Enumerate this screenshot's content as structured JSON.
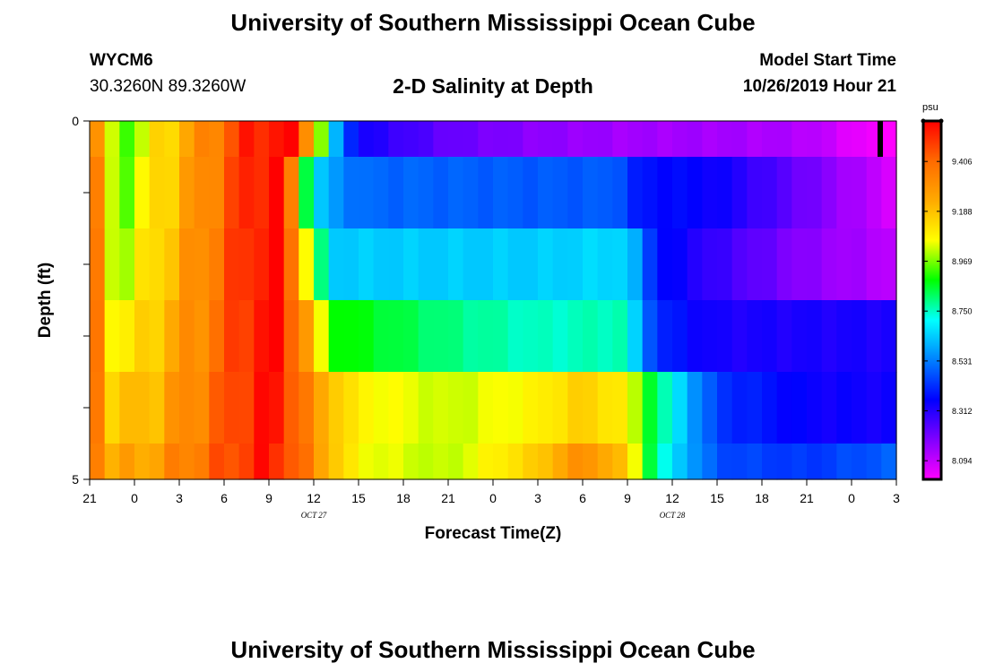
{
  "header": {
    "title": "University of Southern Mississippi Ocean Cube",
    "station": "WYCM6",
    "coords": "30.3260N 89.3260W",
    "subtitle": "2-D Salinity at Depth",
    "model_label": "Model Start Time",
    "model_time": "10/26/2019 Hour 21"
  },
  "footer": {
    "title": "University of Southern Mississippi Ocean Cube"
  },
  "chart_data": {
    "type": "heatmap",
    "xlabel": "Forecast Time(Z)",
    "ylabel": "Depth (ft)",
    "x_tick_labels": [
      "21",
      "0",
      "3",
      "6",
      "9",
      "12",
      "15",
      "18",
      "21",
      "0",
      "3",
      "6",
      "9",
      "12",
      "15",
      "18",
      "21",
      "0",
      "3"
    ],
    "date_labels": [
      {
        "text": "OCT 27",
        "tick_index": 5
      },
      {
        "text": "OCT 28",
        "tick_index": 13
      }
    ],
    "y_tick_labels": [
      {
        "text": "0",
        "value": 0
      },
      {
        "text": "5",
        "value": 5
      }
    ],
    "ylim": [
      0,
      5
    ],
    "forecast_hours": 54,
    "depth_layers": 5,
    "colorbar": {
      "units": "psu",
      "tick_labels": [
        "9.406",
        "9.188",
        "8.969",
        "8.750",
        "8.531",
        "8.312",
        "8.094"
      ],
      "colors_top_to_bottom": [
        "#ff0000",
        "#ff6a00",
        "#ffaa00",
        "#ffff00",
        "#00ff00",
        "#00ffff",
        "#0080ff",
        "#0000ff",
        "#8000ff",
        "#ff00ff"
      ]
    },
    "value_range": [
      8.0,
      9.5
    ],
    "layer_profiles": [
      [
        [
          0,
          9.38
        ],
        [
          1.5,
          8.93
        ],
        [
          3,
          8.9
        ],
        [
          4,
          9.02
        ],
        [
          6,
          9.14
        ],
        [
          9,
          9.33
        ],
        [
          11,
          9.47
        ],
        [
          14,
          9.46
        ],
        [
          15,
          9.1
        ],
        [
          16.5,
          8.56
        ],
        [
          18,
          8.31
        ],
        [
          24,
          8.2
        ],
        [
          30,
          8.15
        ],
        [
          36,
          8.12
        ],
        [
          42,
          8.12
        ],
        [
          48,
          8.1
        ],
        [
          50,
          8.06
        ],
        [
          54,
          7.98
        ]
      ],
      [
        [
          0,
          9.4
        ],
        [
          1.5,
          8.95
        ],
        [
          3,
          8.92
        ],
        [
          4,
          9.04
        ],
        [
          6,
          9.15
        ],
        [
          9,
          9.33
        ],
        [
          11,
          9.47
        ],
        [
          13,
          9.48
        ],
        [
          15,
          8.62
        ],
        [
          16,
          8.55
        ],
        [
          18,
          8.47
        ],
        [
          30,
          8.45
        ],
        [
          36,
          8.45
        ],
        [
          36.5,
          8.36
        ],
        [
          42,
          8.32
        ],
        [
          54,
          8.05
        ]
      ],
      [
        [
          0,
          9.38
        ],
        [
          1.5,
          8.98
        ],
        [
          3,
          8.96
        ],
        [
          4,
          9.06
        ],
        [
          6,
          9.17
        ],
        [
          9,
          9.34
        ],
        [
          11,
          9.47
        ],
        [
          13,
          9.48
        ],
        [
          15,
          8.88
        ],
        [
          16,
          8.6
        ],
        [
          24,
          8.6
        ],
        [
          30,
          8.6
        ],
        [
          36,
          8.62
        ],
        [
          36.5,
          8.55
        ],
        [
          38,
          8.35
        ],
        [
          42,
          8.26
        ],
        [
          48,
          8.15
        ],
        [
          54,
          8.09
        ]
      ],
      [
        [
          0,
          9.37
        ],
        [
          1.5,
          9.05
        ],
        [
          3,
          9.02
        ],
        [
          4,
          9.1
        ],
        [
          6,
          9.19
        ],
        [
          9,
          9.34
        ],
        [
          11,
          9.47
        ],
        [
          13,
          9.47
        ],
        [
          15,
          9.12
        ],
        [
          16,
          8.85
        ],
        [
          24,
          8.75
        ],
        [
          30,
          8.7
        ],
        [
          36,
          8.72
        ],
        [
          36.5,
          8.6
        ],
        [
          38,
          8.38
        ],
        [
          42,
          8.3
        ],
        [
          48,
          8.3
        ],
        [
          54,
          8.3
        ]
      ],
      [
        [
          0,
          9.36
        ],
        [
          1.5,
          9.12
        ],
        [
          3,
          9.1
        ],
        [
          4,
          9.14
        ],
        [
          6,
          9.22
        ],
        [
          9,
          9.35
        ],
        [
          11,
          9.46
        ],
        [
          13,
          9.46
        ],
        [
          15,
          9.2
        ],
        [
          18,
          9.02
        ],
        [
          24,
          8.96
        ],
        [
          30,
          9.02
        ],
        [
          33,
          9.1
        ],
        [
          36,
          9.02
        ],
        [
          38,
          8.75
        ],
        [
          42,
          8.4
        ],
        [
          48,
          8.32
        ],
        [
          54,
          8.31
        ]
      ],
      [
        [
          0,
          9.35
        ],
        [
          1.5,
          9.18
        ],
        [
          3,
          9.16
        ],
        [
          4,
          9.19
        ],
        [
          6,
          9.26
        ],
        [
          9,
          9.36
        ],
        [
          11,
          9.45
        ],
        [
          13,
          9.44
        ],
        [
          15,
          9.22
        ],
        [
          18,
          9.0
        ],
        [
          24,
          8.95
        ],
        [
          30,
          9.1
        ],
        [
          33,
          9.25
        ],
        [
          36,
          9.1
        ],
        [
          38,
          8.7
        ],
        [
          42,
          8.43
        ],
        [
          48,
          8.4
        ],
        [
          54,
          8.46
        ]
      ]
    ]
  }
}
